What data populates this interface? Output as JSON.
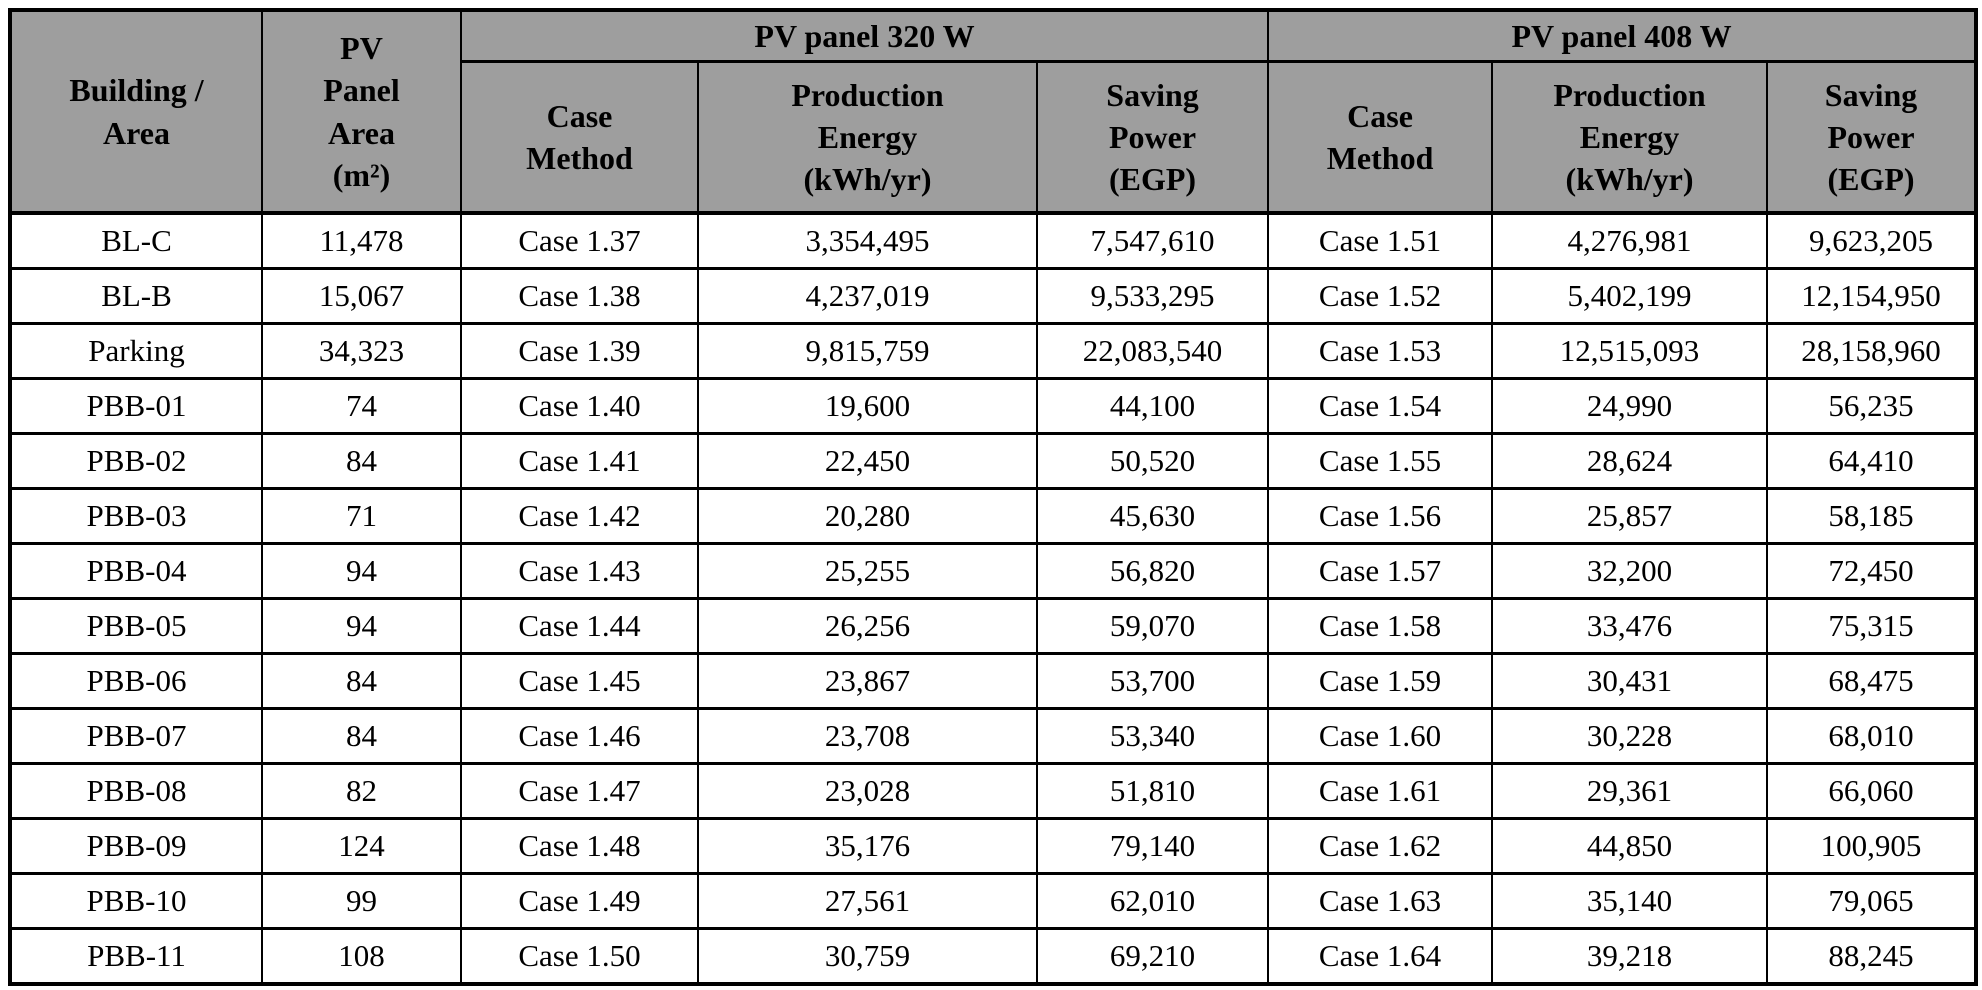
{
  "colors": {
    "header_bg": "#9e9e9e",
    "border": "#000000",
    "text": "#000000",
    "row_bg": "#ffffff"
  },
  "header": {
    "building_area": "Building /\nArea",
    "pv_panel_area": "PV\nPanel\nArea\n(m²)",
    "group_320": "PV panel 320 W",
    "group_408": "PV panel 408 W",
    "case_method": "Case\nMethod",
    "production_energy": "Production\nEnergy\n(kWh/yr)",
    "saving_power": "Saving\nPower\n(EGP)"
  },
  "rows": [
    {
      "building": "BL-C",
      "panel_area": "11,478",
      "case_method_320": "Case 1.37",
      "production_energy_320": "3,354,495",
      "saving_power_320": "7,547,610",
      "case_method_408": "Case 1.51",
      "production_energy_408": "4,276,981",
      "saving_power_408": "9,623,205"
    },
    {
      "building": "BL-B",
      "panel_area": "15,067",
      "case_method_320": "Case 1.38",
      "production_energy_320": "4,237,019",
      "saving_power_320": "9,533,295",
      "case_method_408": "Case 1.52",
      "production_energy_408": "5,402,199",
      "saving_power_408": "12,154,950"
    },
    {
      "building": "Parking",
      "panel_area": "34,323",
      "case_method_320": "Case 1.39",
      "production_energy_320": "9,815,759",
      "saving_power_320": "22,083,540",
      "case_method_408": "Case 1.53",
      "production_energy_408": "12,515,093",
      "saving_power_408": "28,158,960"
    },
    {
      "building": "PBB-01",
      "panel_area": "74",
      "case_method_320": "Case 1.40",
      "production_energy_320": "19,600",
      "saving_power_320": "44,100",
      "case_method_408": "Case 1.54",
      "production_energy_408": "24,990",
      "saving_power_408": "56,235"
    },
    {
      "building": "PBB-02",
      "panel_area": "84",
      "case_method_320": "Case 1.41",
      "production_energy_320": "22,450",
      "saving_power_320": "50,520",
      "case_method_408": "Case 1.55",
      "production_energy_408": "28,624",
      "saving_power_408": "64,410"
    },
    {
      "building": "PBB-03",
      "panel_area": "71",
      "case_method_320": "Case 1.42",
      "production_energy_320": "20,280",
      "saving_power_320": "45,630",
      "case_method_408": "Case 1.56",
      "production_energy_408": "25,857",
      "saving_power_408": "58,185"
    },
    {
      "building": "PBB-04",
      "panel_area": "94",
      "case_method_320": "Case 1.43",
      "production_energy_320": "25,255",
      "saving_power_320": "56,820",
      "case_method_408": "Case 1.57",
      "production_energy_408": "32,200",
      "saving_power_408": "72,450"
    },
    {
      "building": "PBB-05",
      "panel_area": "94",
      "case_method_320": "Case 1.44",
      "production_energy_320": "26,256",
      "saving_power_320": "59,070",
      "case_method_408": "Case 1.58",
      "production_energy_408": "33,476",
      "saving_power_408": "75,315"
    },
    {
      "building": "PBB-06",
      "panel_area": "84",
      "case_method_320": "Case 1.45",
      "production_energy_320": "23,867",
      "saving_power_320": "53,700",
      "case_method_408": "Case 1.59",
      "production_energy_408": "30,431",
      "saving_power_408": "68,475"
    },
    {
      "building": "PBB-07",
      "panel_area": "84",
      "case_method_320": "Case 1.46",
      "production_energy_320": "23,708",
      "saving_power_320": "53,340",
      "case_method_408": "Case 1.60",
      "production_energy_408": "30,228",
      "saving_power_408": "68,010"
    },
    {
      "building": "PBB-08",
      "panel_area": "82",
      "case_method_320": "Case 1.47",
      "production_energy_320": "23,028",
      "saving_power_320": "51,810",
      "case_method_408": "Case 1.61",
      "production_energy_408": "29,361",
      "saving_power_408": "66,060"
    },
    {
      "building": "PBB-09",
      "panel_area": "124",
      "case_method_320": "Case 1.48",
      "production_energy_320": "35,176",
      "saving_power_320": "79,140",
      "case_method_408": "Case 1.62",
      "production_energy_408": "44,850",
      "saving_power_408": "100,905"
    },
    {
      "building": "PBB-10",
      "panel_area": "99",
      "case_method_320": "Case 1.49",
      "production_energy_320": "27,561",
      "saving_power_320": "62,010",
      "case_method_408": "Case 1.63",
      "production_energy_408": "35,140",
      "saving_power_408": "79,065"
    },
    {
      "building": "PBB-11",
      "panel_area": "108",
      "case_method_320": "Case 1.50",
      "production_energy_320": "30,759",
      "saving_power_320": "69,210",
      "case_method_408": "Case 1.64",
      "production_energy_408": "39,218",
      "saving_power_408": "88,245"
    }
  ]
}
